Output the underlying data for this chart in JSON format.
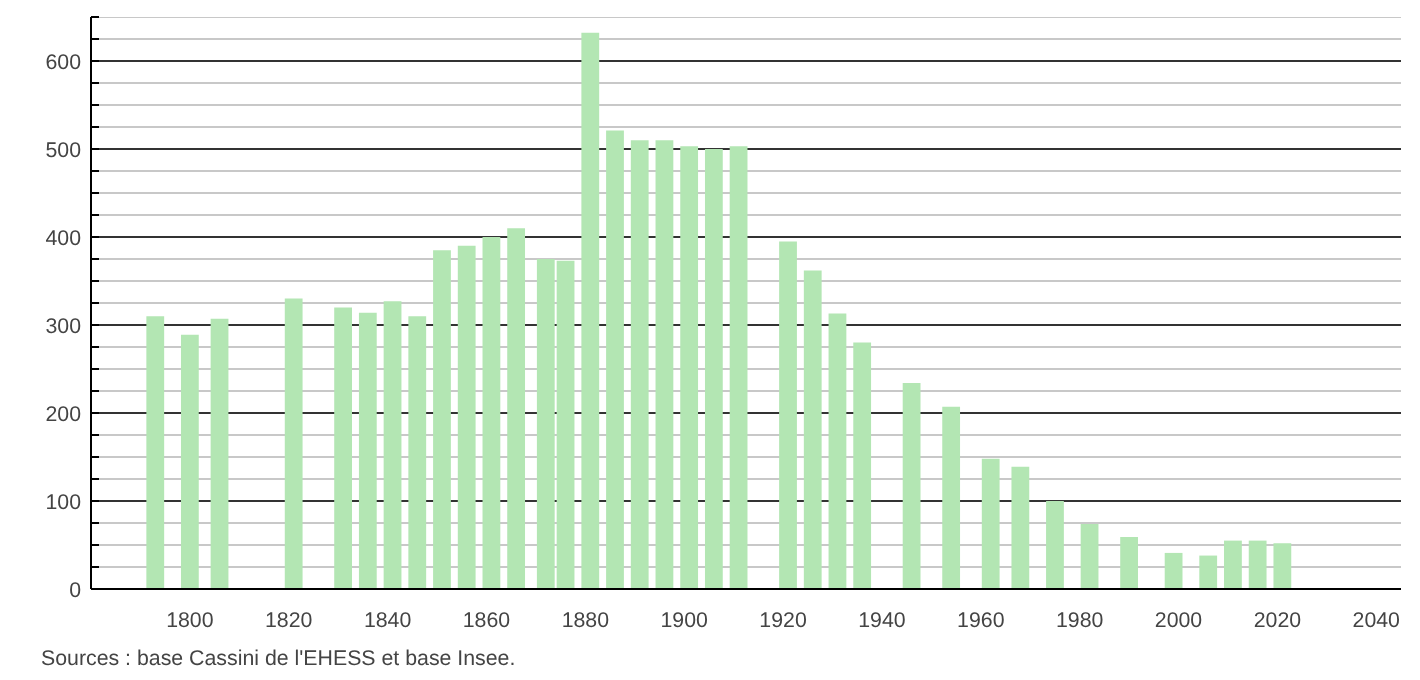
{
  "chart_data": {
    "type": "bar",
    "x": [
      1793,
      1800,
      1806,
      1821,
      1831,
      1836,
      1841,
      1846,
      1851,
      1856,
      1861,
      1866,
      1872,
      1876,
      1881,
      1886,
      1891,
      1896,
      1901,
      1906,
      1911,
      1921,
      1926,
      1931,
      1936,
      1946,
      1954,
      1962,
      1968,
      1975,
      1982,
      1990,
      1999,
      2006,
      2011,
      2016,
      2021
    ],
    "values": [
      310,
      289,
      307,
      330,
      320,
      314,
      327,
      310,
      385,
      390,
      400,
      410,
      375,
      373,
      632,
      521,
      510,
      510,
      503,
      500,
      503,
      395,
      362,
      313,
      280,
      234,
      207,
      148,
      139,
      100,
      74,
      59,
      41,
      38,
      55,
      55,
      52
    ],
    "color": "#b3e6b3",
    "xlim": [
      1780,
      2045
    ],
    "ylim": [
      0,
      650
    ],
    "xticks": [
      1800,
      1820,
      1840,
      1860,
      1880,
      1900,
      1920,
      1940,
      1960,
      1980,
      2000,
      2020,
      2040
    ],
    "yticks": [
      0,
      {
        "value": 25,
        "label": null
      },
      {
        "value": 50,
        "label": null
      },
      {
        "value": 75,
        "label": null
      },
      100,
      {
        "value": 125,
        "label": null
      },
      {
        "value": 150,
        "label": null
      },
      {
        "value": 175,
        "label": null
      },
      200,
      {
        "value": 225,
        "label": null
      },
      {
        "value": 250,
        "label": null
      },
      {
        "value": 275,
        "label": null
      },
      300,
      {
        "value": 325,
        "label": null
      },
      {
        "value": 350,
        "label": null
      },
      {
        "value": 375,
        "label": null
      },
      400,
      {
        "value": 425,
        "label": null
      },
      {
        "value": 450,
        "label": null
      },
      {
        "value": 475,
        "label": null
      },
      500,
      {
        "value": 525,
        "label": null
      },
      {
        "value": 550,
        "label": null
      },
      {
        "value": 575,
        "label": null
      },
      600,
      {
        "value": 625,
        "label": null
      },
      {
        "value": 650,
        "label": null
      }
    ],
    "grid": "y",
    "annotations": [
      "Sources : base Cassini de l'EHESS et base Insee."
    ]
  }
}
